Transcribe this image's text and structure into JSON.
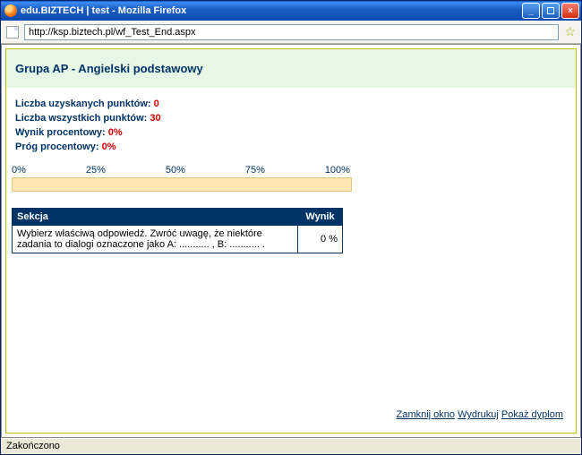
{
  "window": {
    "title": "edu.BIZTECH | test - Mozilla Firefox"
  },
  "addressbar": {
    "url": "http://ksp.biztech.pl/wf_Test_End.aspx"
  },
  "page": {
    "heading": "Grupa AP - Angielski podstawowy",
    "stats": {
      "scored_label": "Liczba uzyskanych punktów:",
      "scored_value": "0",
      "total_label": "Liczba wszystkich punktów:",
      "total_value": "30",
      "result_pct_label": "Wynik procentowy:",
      "result_pct_value": "0%",
      "threshold_pct_label": "Próg procentowy:",
      "threshold_pct_value": "0%"
    },
    "scale": [
      "0%",
      "25%",
      "50%",
      "75%",
      "100%"
    ],
    "bar": {
      "bg_color": "#ffe5b2",
      "border_color": "#e6c77f",
      "fill_pct": 0
    },
    "table": {
      "headers": {
        "section": "Sekcja",
        "result": "Wynik"
      },
      "rows": [
        {
          "section": "Wybierz właściwą odpowiedź. Zwróć uwagę, że niektóre zadania to dialogi oznaczone jako A: ........... , B: ........... .",
          "result": "0 %"
        }
      ]
    },
    "links": {
      "close": "Zamknij okno",
      "print": "Wydrukuj",
      "diploma": "Pokaż dyplom"
    }
  },
  "status": {
    "text": "Zakończono"
  }
}
